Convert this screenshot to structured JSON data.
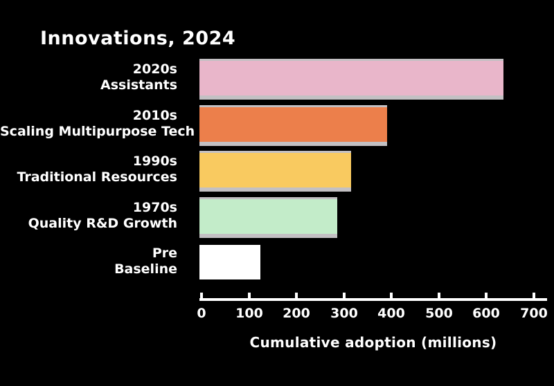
{
  "page": {
    "background_color": "#000000",
    "text_color": "#ffffff"
  },
  "chart_data": {
    "type": "bar",
    "orientation": "horizontal",
    "title": "Innovations, 2024",
    "xlabel": "Cumulative adoption (millions)",
    "xlim": [
      0,
      700
    ],
    "xticks": [
      "0",
      "100",
      "200",
      "300",
      "400",
      "500",
      "600",
      "700"
    ],
    "grid": false,
    "legend": "none",
    "bar_edge_color": "#c3c0c3",
    "rows": [
      {
        "label_line1": "2020s",
        "label_line2": "Assistants",
        "value": 640,
        "color": "#e9b6ca"
      },
      {
        "label_line1": "2010s",
        "label_line2": "Scaling Multipurpose Tech",
        "value": 395,
        "color": "#ec7f4b"
      },
      {
        "label_line1": "1990s",
        "label_line2": "Traditional Resources",
        "value": 320,
        "color": "#f9ca60"
      },
      {
        "label_line1": "1970s",
        "label_line2": "Quality R&D Growth",
        "value": 290,
        "color": "#c3ecc9"
      },
      {
        "label_line1": "Pre",
        "label_line2": "Baseline",
        "value": 128,
        "color": "#ffffff"
      }
    ]
  }
}
